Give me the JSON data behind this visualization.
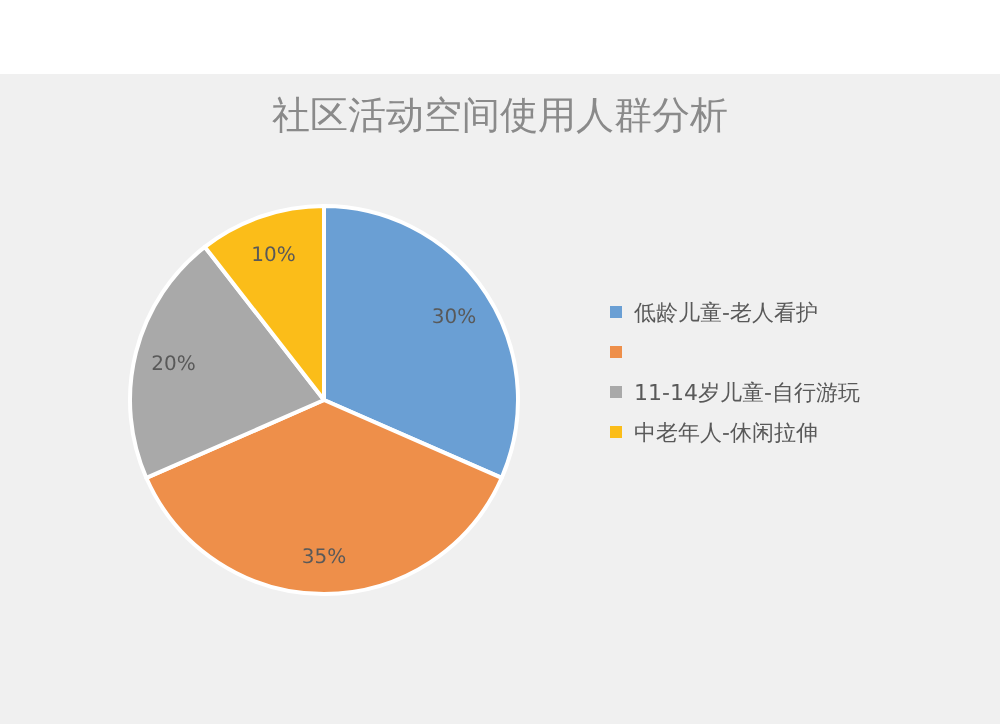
{
  "chart_data": {
    "type": "pie",
    "title": "社区活动空间使用人群分析",
    "categories": [
      "低龄儿童-老人看护",
      null,
      "11-14岁儿童-自行游玩",
      "中老年人-休闲拉伸"
    ],
    "values": [
      30,
      35,
      20,
      10
    ],
    "colors": [
      "#6a9fd4",
      "#ee8f4a",
      "#a9a9a9",
      "#fbbd19"
    ],
    "value_labels": [
      "30%",
      "35%",
      "20%",
      "10%"
    ],
    "legend": "right"
  }
}
